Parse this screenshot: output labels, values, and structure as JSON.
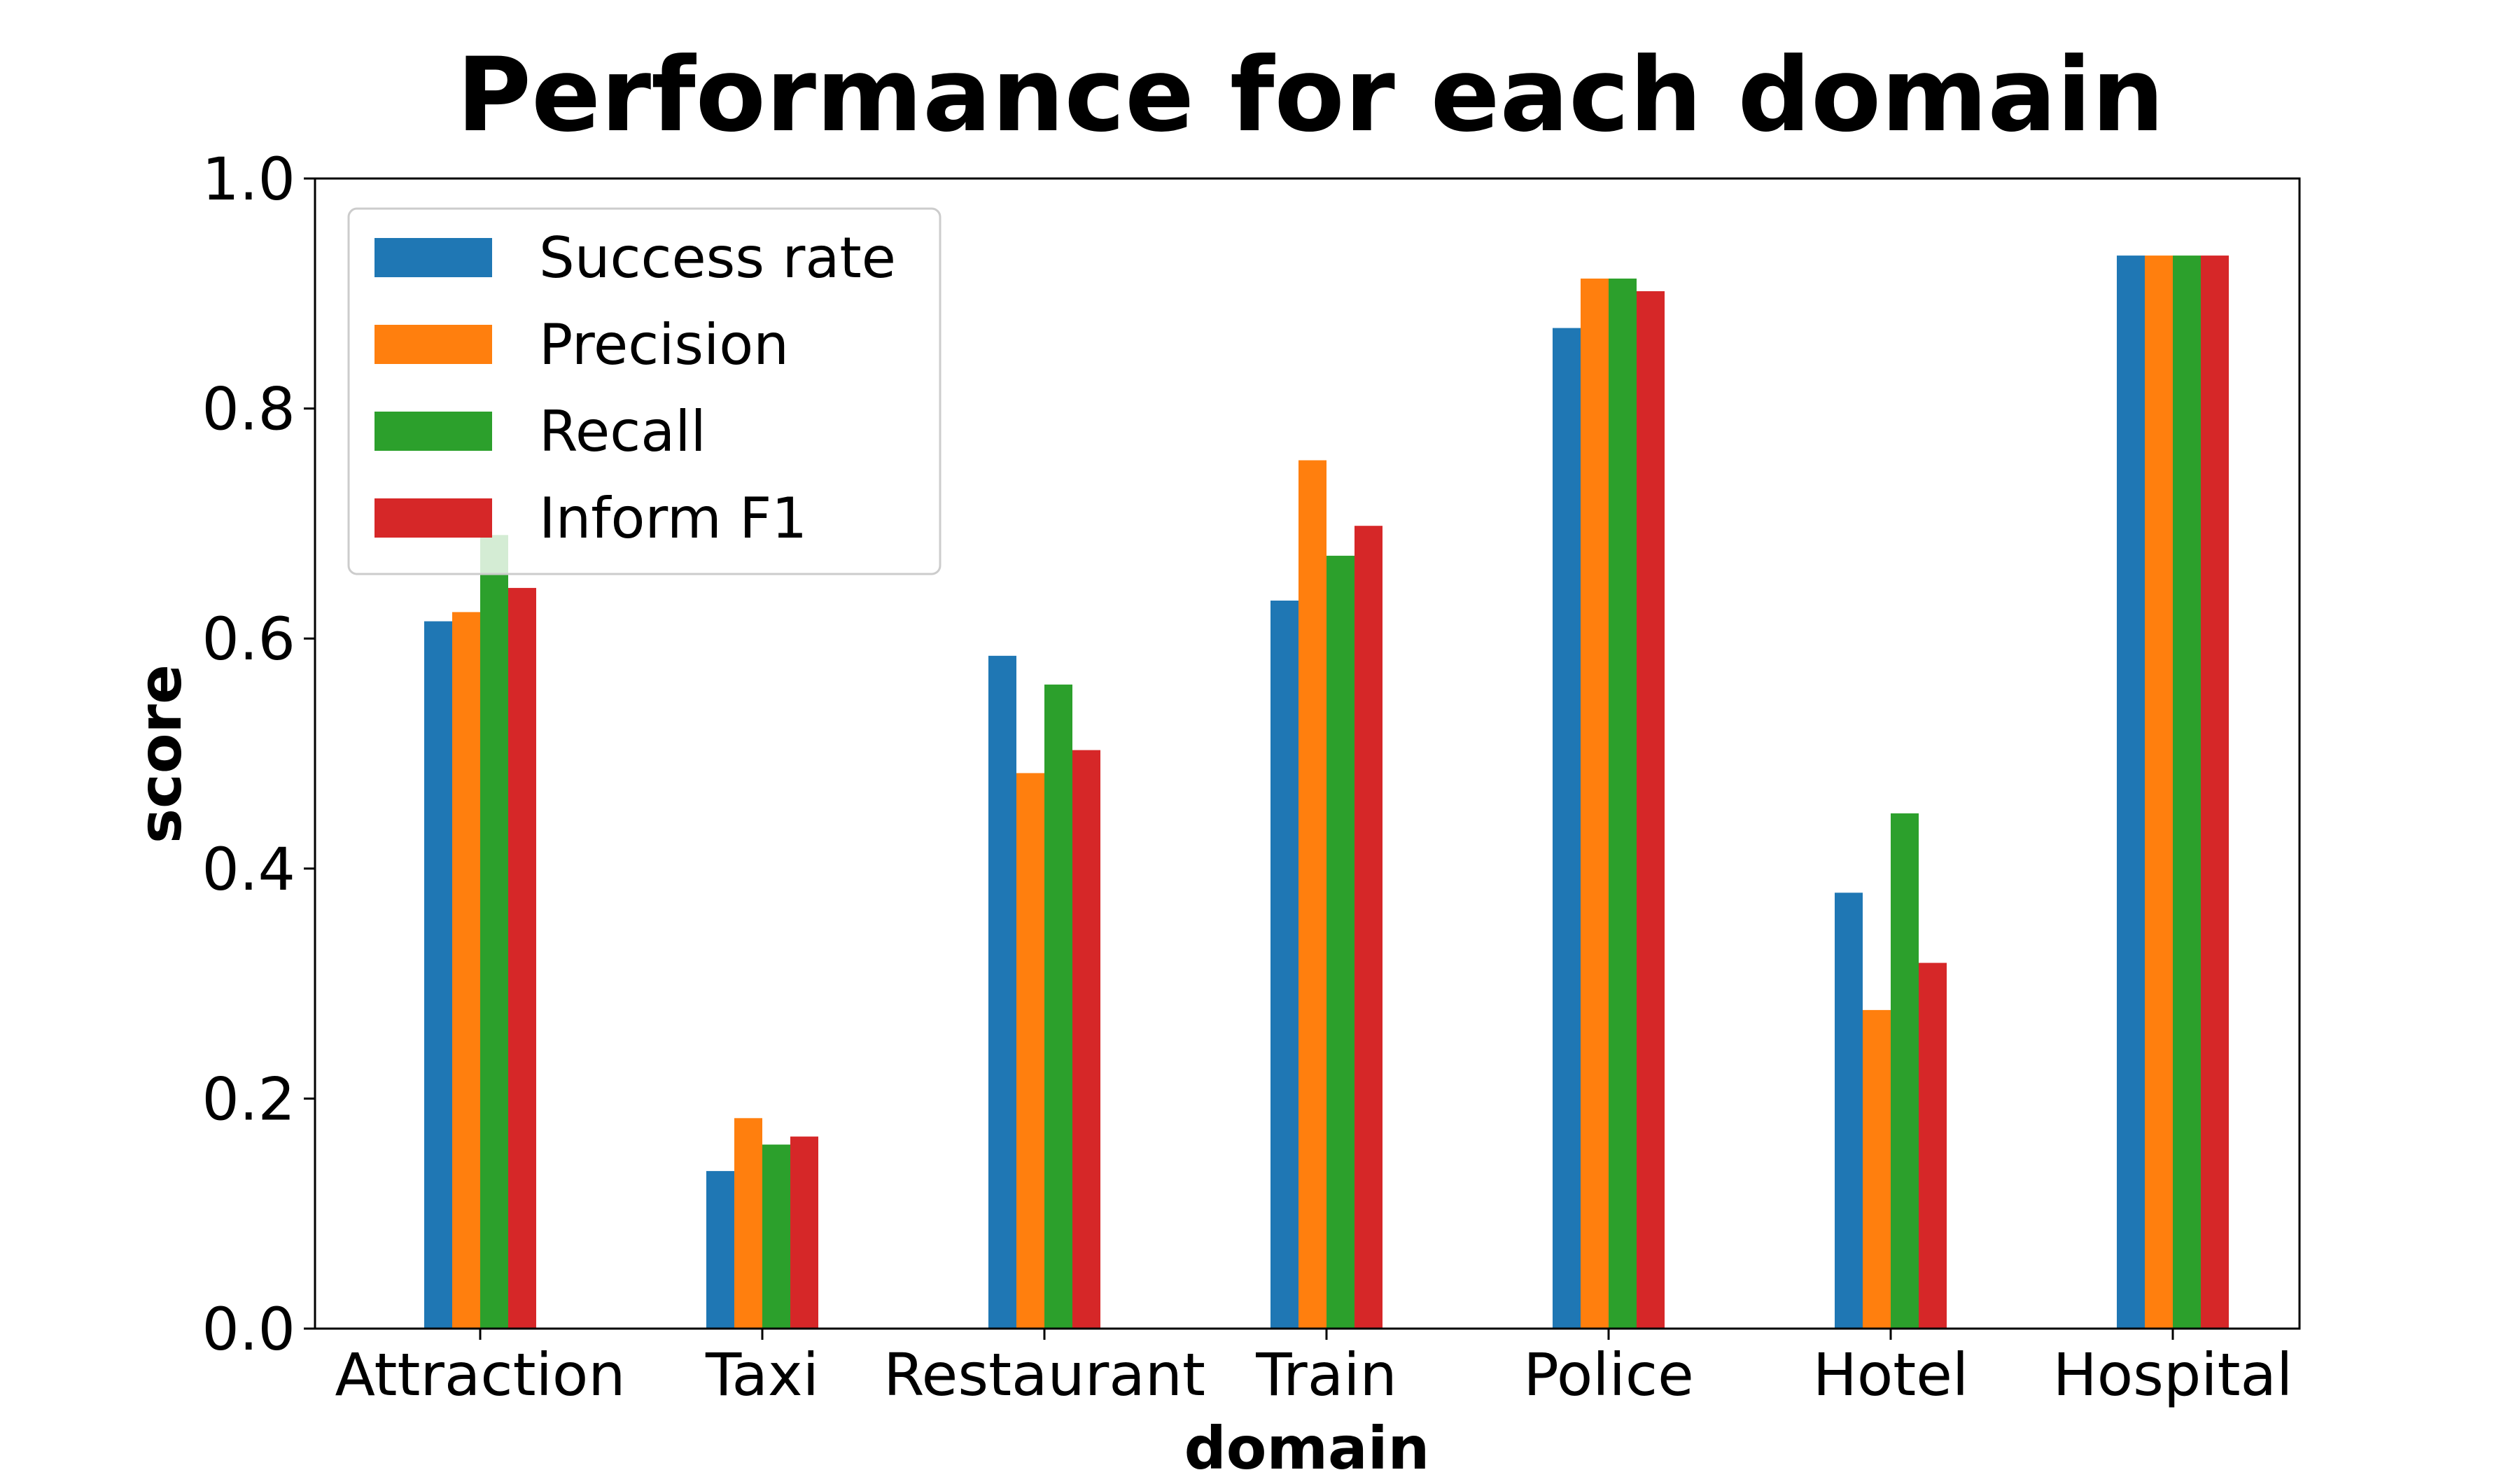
{
  "chart_data": {
    "type": "bar",
    "title": "Performance for each domain",
    "xlabel": "domain",
    "ylabel": "score",
    "ylim": [
      0,
      1.0
    ],
    "yticks": [
      0.0,
      0.2,
      0.4,
      0.6,
      0.8,
      1.0
    ],
    "ytick_labels": [
      "0.0",
      "0.2",
      "0.4",
      "0.6",
      "0.8",
      "1.0"
    ],
    "categories": [
      "Attraction",
      "Taxi",
      "Restaurant",
      "Train",
      "Police",
      "Hotel",
      "Hospital"
    ],
    "series": [
      {
        "name": "Success rate",
        "color": "#1f77b4",
        "values": [
          0.615,
          0.137,
          0.585,
          0.633,
          0.87,
          0.379,
          0.933
        ]
      },
      {
        "name": "Precision",
        "color": "#ff7f0e",
        "values": [
          0.623,
          0.183,
          0.483,
          0.755,
          0.913,
          0.277,
          0.933
        ]
      },
      {
        "name": "Recall",
        "color": "#2ca02c",
        "values": [
          0.69,
          0.16,
          0.56,
          0.672,
          0.913,
          0.448,
          0.933
        ]
      },
      {
        "name": "Inform F1",
        "color": "#d62728",
        "values": [
          0.644,
          0.167,
          0.503,
          0.698,
          0.902,
          0.318,
          0.933
        ]
      }
    ],
    "legend_position": "top-left",
    "grid": false
  }
}
